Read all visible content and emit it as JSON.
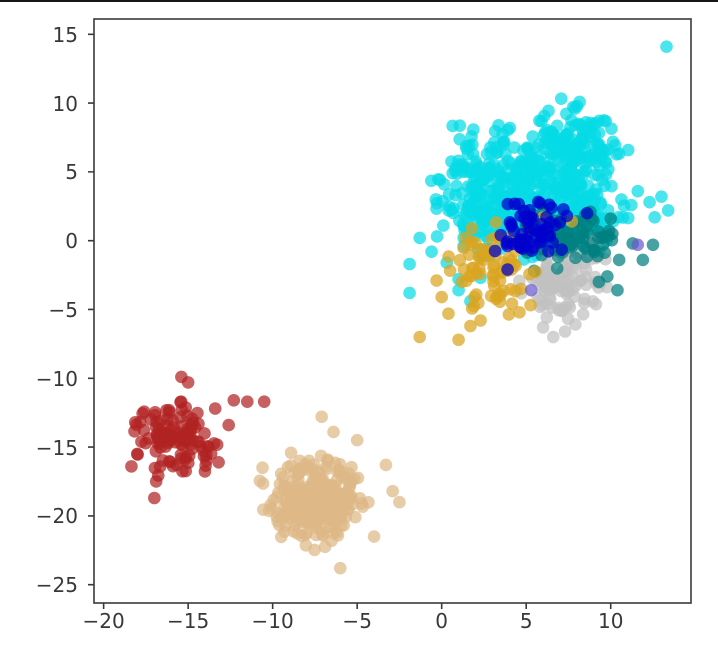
{
  "figure": {
    "background_color": "#ffffff",
    "top_border_color": "#161616"
  },
  "chart_data": {
    "type": "scatter",
    "title": "",
    "xlabel": "",
    "ylabel": "",
    "grid": false,
    "legend": null,
    "xlim": [
      -20.57,
      14.75
    ],
    "ylim": [
      -26.33,
      16.11
    ],
    "xticks": [
      -20,
      -15,
      -10,
      -5,
      0,
      5,
      10
    ],
    "xtick_labels": [
      "−20",
      "−15",
      "−10",
      "−5",
      "0",
      "5",
      "10"
    ],
    "yticks": [
      -25,
      -20,
      -15,
      -10,
      -5,
      0,
      5,
      10,
      15
    ],
    "ytick_labels": [
      "−25",
      "−20",
      "−15",
      "−10",
      "−5",
      "0",
      "5",
      "10",
      "15"
    ],
    "tick_label_color": "#383838",
    "spine_color": "#3a3a3a",
    "marker": {
      "radius_px": 6.3,
      "alpha": 0.72
    },
    "clusters": [
      {
        "name": "cyan-lobe-left",
        "color_name": "cyan",
        "color": "#06dbe6",
        "seed": 11,
        "n": 280,
        "center": [
          3.4,
          3.6
        ],
        "std": [
          1.8,
          2.1
        ],
        "clip": 2.4,
        "extra": []
      },
      {
        "name": "cyan-lobe-right",
        "color_name": "cyan",
        "color": "#06dbe6",
        "seed": 22,
        "n": 220,
        "center": [
          7.8,
          5.6
        ],
        "std": [
          1.5,
          2.0
        ],
        "clip": 2.4,
        "extra": []
      },
      {
        "name": "cyan-bottom-band",
        "color_name": "cyan",
        "color": "#06dbe6",
        "seed": 33,
        "n": 190,
        "center": [
          6.0,
          1.4
        ],
        "std": [
          2.4,
          1.2
        ],
        "clip": 2.4,
        "extra": [
          [
            13.3,
            14.1
          ],
          [
            12.3,
            2.8
          ],
          [
            13.0,
            3.2
          ],
          [
            13.4,
            2.2
          ],
          [
            12.6,
            1.7
          ],
          [
            11.6,
            3.6
          ],
          [
            -1.9,
            -1.7
          ],
          [
            -0.6,
            -0.8
          ],
          [
            0.3,
            -1.6
          ],
          [
            1.0,
            -2.8
          ],
          [
            -1.9,
            -3.8
          ],
          [
            1.0,
            -3.6
          ],
          [
            -1.3,
            0.2
          ],
          [
            0.1,
            1.1
          ],
          [
            2.3,
            -2.7
          ],
          [
            1.3,
            -0.4
          ],
          [
            1.7,
            -4.4
          ]
        ]
      },
      {
        "name": "silver-cluster",
        "color_name": "silver",
        "color": "#c0c0c0",
        "seed": 44,
        "n": 100,
        "center": [
          7.0,
          -3.2
        ],
        "std": [
          1.25,
          1.4
        ],
        "clip": 2.6,
        "extra": [
          [
            6.0,
            -6.3
          ],
          [
            6.6,
            -7.0
          ],
          [
            7.3,
            -6.6
          ]
        ]
      },
      {
        "name": "teal-cluster",
        "color_name": "teal",
        "color": "#008080",
        "seed": 55,
        "n": 70,
        "center": [
          7.2,
          0.2
        ],
        "std": [
          1.3,
          1.0
        ],
        "clip": 2.4,
        "extra": [
          [
            10.1,
            0.5
          ],
          [
            11.3,
            -0.2
          ],
          [
            12.5,
            -0.3
          ],
          [
            10.5,
            -1.4
          ],
          [
            11.9,
            -1.4
          ],
          [
            9.8,
            -2.6
          ],
          [
            10.4,
            -3.6
          ],
          [
            9.3,
            -3.0
          ],
          [
            8.8,
            2.1
          ],
          [
            10.0,
            1.6
          ]
        ]
      },
      {
        "name": "goldenrod-cluster",
        "color_name": "goldenrod",
        "color": "#daa520",
        "seed": 66,
        "n": 75,
        "center": [
          3.0,
          -2.0
        ],
        "std": [
          1.3,
          1.4
        ],
        "clip": 2.4,
        "extra": [
          [
            -1.3,
            -7.0
          ],
          [
            1.0,
            -7.2
          ],
          [
            1.7,
            -6.2
          ],
          [
            0.4,
            -5.3
          ],
          [
            2.3,
            -5.8
          ],
          [
            0.0,
            -4.1
          ],
          [
            6.0,
            1.7
          ],
          [
            7.7,
            1.4
          ],
          [
            5.2,
            0.9
          ],
          [
            -0.3,
            -2.9
          ],
          [
            4.6,
            -5.2
          ]
        ]
      },
      {
        "name": "mediumblue-cluster",
        "color_name": "mediumblue",
        "color": "#0000cd",
        "seed": 77,
        "n": 62,
        "center": [
          5.3,
          0.8
        ],
        "std": [
          1.0,
          1.1
        ],
        "clip": 2.2,
        "extra": [
          [
            8.6,
            2.0
          ],
          [
            3.9,
            -2.1
          ]
        ]
      },
      {
        "name": "slateblue-points",
        "color_name": "slateblue",
        "color": "#6a5acd",
        "seed": 88,
        "n": 0,
        "center": [
          0,
          0
        ],
        "std": [
          1,
          1
        ],
        "clip": 2.0,
        "extra": [
          [
            11.6,
            -0.3
          ],
          [
            5.3,
            -3.6
          ]
        ]
      },
      {
        "name": "firebrick-cluster",
        "color_name": "firebrick",
        "color": "#b22222",
        "seed": 99,
        "n": 115,
        "center": [
          -16.0,
          -14.3
        ],
        "std": [
          1.25,
          1.45
        ],
        "clip": 2.3,
        "extra": [
          [
            -12.3,
            -11.6
          ],
          [
            -11.5,
            -11.7
          ],
          [
            -10.5,
            -11.7
          ],
          [
            -15.4,
            -9.9
          ],
          [
            -15.0,
            -10.3
          ],
          [
            -17.0,
            -18.7
          ],
          [
            -12.6,
            -13.4
          ],
          [
            -13.4,
            -12.2
          ]
        ]
      },
      {
        "name": "burlywood-cluster",
        "color_name": "burlywood",
        "color": "#deb887",
        "seed": 110,
        "n": 290,
        "center": [
          -7.6,
          -18.9
        ],
        "std": [
          1.4,
          1.5
        ],
        "clip": 2.5,
        "extra": [
          [
            -6.0,
            -23.8
          ],
          [
            -7.1,
            -12.8
          ],
          [
            -6.4,
            -13.9
          ],
          [
            -5.0,
            -14.5
          ],
          [
            -10.6,
            -16.5
          ],
          [
            -3.3,
            -16.3
          ],
          [
            -4.0,
            -21.5
          ],
          [
            -2.9,
            -18.2
          ],
          [
            -2.5,
            -19.0
          ]
        ]
      }
    ]
  }
}
